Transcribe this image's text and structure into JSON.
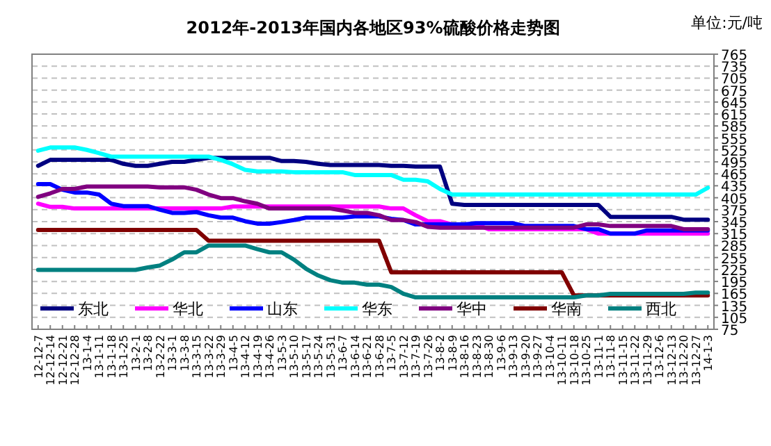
{
  "chart_data": {
    "type": "line",
    "title": "2012年-2013年国内各地区93%硫酸价格走势图",
    "annotations": [
      "单位:元/吨"
    ],
    "categories": [
      "12-12-7",
      "12-12-14",
      "12-12-21",
      "12-12-28",
      "13-1-4",
      "13-1-11",
      "13-1-18",
      "13-1-25",
      "13-2-1",
      "13-2-8",
      "13-2-22",
      "13-3-1",
      "13-3-8",
      "13-3-15",
      "13-3-22",
      "13-3-29",
      "13-4-5",
      "13-4-12",
      "13-4-19",
      "13-4-26",
      "13-5-3",
      "13-5-10",
      "13-5-17",
      "13-5-24",
      "13-5-31",
      "13-6-7",
      "13-6-14",
      "13-6-21",
      "13-6-28",
      "13-7-5",
      "13-7-12",
      "13-7-19",
      "13-7-26",
      "13-8-2",
      "13-8-9",
      "13-8-16",
      "13-8-23",
      "13-8-30",
      "13-9-6",
      "13-9-13",
      "13-9-20",
      "13-9-27",
      "13-10-4",
      "13-10-11",
      "13-10-18",
      "13-10-25",
      "13-11-1",
      "13-11-8",
      "13-11-15",
      "13-11-22",
      "13-11-29",
      "13-12-6",
      "13-12-13",
      "13-12-20",
      "13-12-27",
      "14-1-3"
    ],
    "series": [
      {
        "name": "东北",
        "color": "#000080",
        "values": [
          485,
          500,
          500,
          500,
          500,
          500,
          500,
          490,
          485,
          485,
          490,
          495,
          495,
          500,
          505,
          505,
          505,
          505,
          505,
          505,
          497,
          497,
          495,
          490,
          487,
          487,
          487,
          487,
          487,
          485,
          485,
          483,
          483,
          483,
          390,
          387,
          387,
          387,
          387,
          387,
          387,
          387,
          387,
          387,
          387,
          387,
          387,
          357,
          357,
          357,
          357,
          357,
          357,
          350,
          350,
          350
        ]
      },
      {
        "name": "华北",
        "color": "#ff00ff",
        "values": [
          390,
          382,
          382,
          378,
          378,
          378,
          378,
          378,
          378,
          378,
          378,
          378,
          378,
          378,
          378,
          378,
          383,
          383,
          383,
          383,
          383,
          383,
          383,
          383,
          383,
          383,
          383,
          383,
          383,
          378,
          378,
          361,
          346,
          346,
          338,
          338,
          338,
          326,
          326,
          326,
          326,
          326,
          326,
          326,
          326,
          326,
          315,
          315,
          315,
          315,
          315,
          315,
          315,
          315,
          315,
          315
        ]
      },
      {
        "name": "山东",
        "color": "#0000ff",
        "values": [
          439,
          439,
          425,
          418,
          418,
          413,
          390,
          384,
          384,
          384,
          375,
          367,
          367,
          369,
          361,
          355,
          355,
          346,
          340,
          340,
          344,
          349,
          355,
          355,
          355,
          355,
          358,
          358,
          358,
          352,
          349,
          338,
          338,
          338,
          338,
          338,
          341,
          341,
          341,
          341,
          334,
          334,
          334,
          334,
          334,
          326,
          326,
          315,
          315,
          315,
          323,
          323,
          323,
          323,
          323,
          323
        ]
      },
      {
        "name": "华东",
        "color": "#00ffff",
        "values": [
          523,
          531,
          531,
          531,
          525,
          517,
          508,
          508,
          508,
          508,
          508,
          508,
          508,
          508,
          508,
          500,
          489,
          475,
          471,
          471,
          471,
          469,
          469,
          469,
          469,
          469,
          462,
          462,
          462,
          462,
          450,
          450,
          446,
          427,
          413,
          413,
          413,
          413,
          413,
          413,
          413,
          413,
          413,
          413,
          413,
          413,
          413,
          413,
          413,
          413,
          413,
          413,
          413,
          413,
          413,
          430
        ]
      },
      {
        "name": "华中",
        "color": "#800080",
        "values": [
          407,
          416,
          427,
          427,
          433,
          433,
          433,
          433,
          433,
          433,
          431,
          431,
          431,
          425,
          413,
          404,
          404,
          396,
          390,
          378,
          378,
          378,
          378,
          378,
          378,
          373,
          367,
          367,
          361,
          349,
          349,
          344,
          332,
          330,
          330,
          330,
          330,
          330,
          330,
          330,
          330,
          330,
          330,
          330,
          330,
          338,
          338,
          334,
          334,
          334,
          334,
          334,
          334,
          326,
          326,
          326
        ]
      },
      {
        "name": "华南",
        "color": "#800000",
        "values": [
          324,
          324,
          324,
          324,
          324,
          324,
          324,
          324,
          324,
          324,
          324,
          324,
          324,
          324,
          297,
          297,
          297,
          297,
          297,
          297,
          297,
          297,
          297,
          297,
          297,
          297,
          297,
          297,
          297,
          218,
          218,
          218,
          218,
          218,
          218,
          218,
          218,
          218,
          218,
          218,
          218,
          218,
          218,
          218,
          160,
          160,
          160,
          160,
          160,
          160,
          160,
          160,
          160,
          160,
          160,
          160
        ]
      },
      {
        "name": "西北",
        "color": "#008080",
        "values": [
          224,
          224,
          224,
          224,
          224,
          224,
          224,
          224,
          224,
          230,
          235,
          250,
          268,
          268,
          285,
          285,
          285,
          285,
          276,
          268,
          268,
          250,
          227,
          210,
          198,
          192,
          192,
          187,
          187,
          181,
          164,
          155,
          155,
          155,
          155,
          155,
          155,
          155,
          155,
          155,
          155,
          155,
          155,
          155,
          155,
          160,
          160,
          164,
          164,
          164,
          164,
          164,
          164,
          164,
          167,
          167
        ]
      }
    ],
    "ylim": [
      75,
      765
    ],
    "yticks": [
      75,
      105,
      135,
      165,
      195,
      225,
      255,
      285,
      315,
      345,
      375,
      405,
      435,
      465,
      495,
      525,
      555,
      585,
      615,
      645,
      675,
      705,
      735,
      765
    ],
    "grid": "y",
    "legend": "bottom",
    "marker": "none",
    "line_style": "solid"
  }
}
